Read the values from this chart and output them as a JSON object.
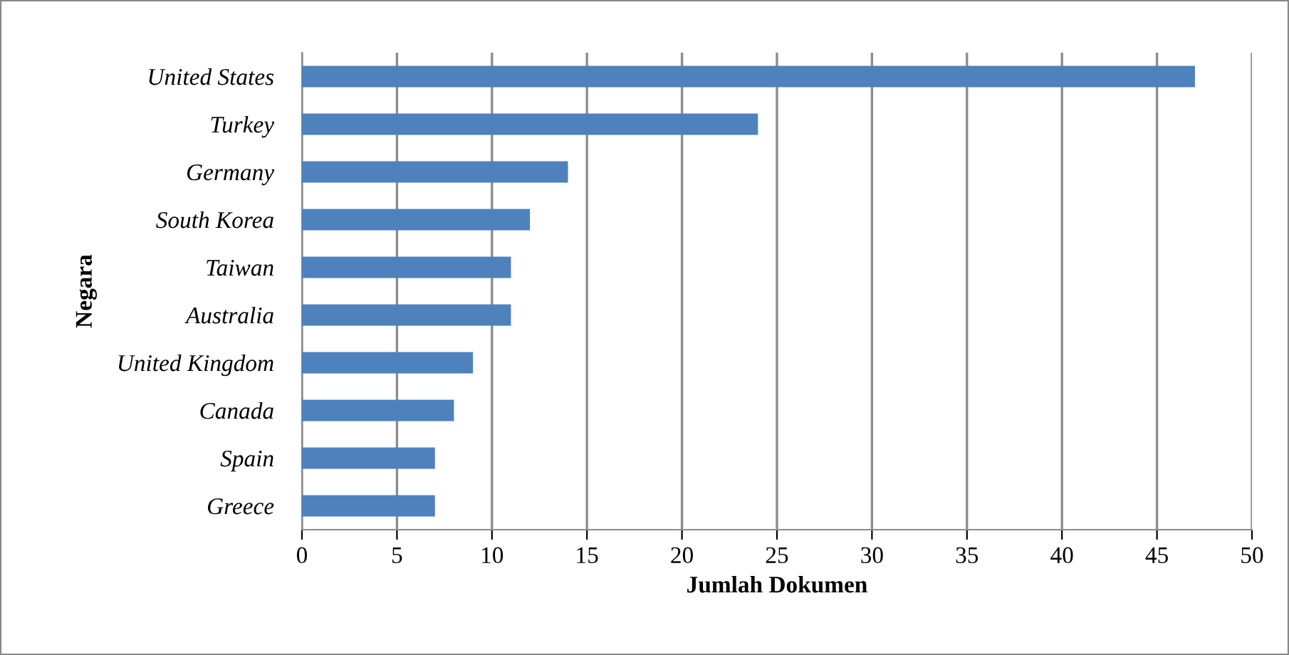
{
  "chart_data": {
    "type": "bar",
    "orientation": "horizontal",
    "xlabel": "Jumlah Dokumen",
    "ylabel": "Negara",
    "categories": [
      "United States",
      "Turkey",
      "Germany",
      "South Korea",
      "Taiwan",
      "Australia",
      "United Kingdom",
      "Canada",
      "Spain",
      "Greece"
    ],
    "values": [
      47,
      24,
      14,
      12,
      11,
      11,
      9,
      8,
      7,
      7
    ],
    "color": "#4f81bd",
    "xlim": [
      0,
      50
    ],
    "xticks": [
      0,
      5,
      10,
      15,
      20,
      25,
      30,
      35,
      40,
      45,
      50
    ],
    "grid": "x",
    "legend": false
  }
}
